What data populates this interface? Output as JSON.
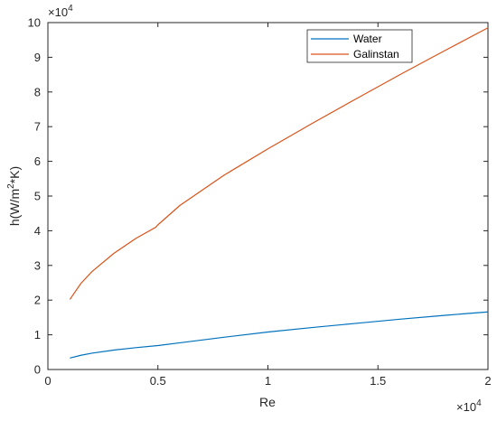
{
  "chart_data": {
    "type": "line",
    "title": "",
    "xlabel": "Re",
    "ylabel": "h(W/m",
    "ylabel_sup": "2",
    "ylabel_tail": "*K)",
    "xlim": [
      0,
      20000
    ],
    "ylim": [
      0,
      100000
    ],
    "x_ticks": [
      0,
      5000,
      10000,
      15000,
      20000
    ],
    "x_tick_labels": [
      "0",
      "0.5",
      "1",
      "1.5",
      "2"
    ],
    "y_ticks": [
      0,
      10000,
      20000,
      30000,
      40000,
      50000,
      60000,
      70000,
      80000,
      90000,
      100000
    ],
    "y_tick_labels": [
      "0",
      "1",
      "2",
      "3",
      "4",
      "5",
      "6",
      "7",
      "8",
      "9",
      "10"
    ],
    "x_multiplier": {
      "base": "×10",
      "exp": "4"
    },
    "y_multiplier": {
      "base": "×10",
      "exp": "4"
    },
    "grid": false,
    "legend_position": "top-right",
    "series": [
      {
        "name": "Water",
        "color": "#0072BD",
        "x": [
          1000,
          1500,
          2000,
          3000,
          4000,
          5000,
          6000,
          8000,
          10000,
          12000,
          14000,
          16000,
          18000,
          20000
        ],
        "y": [
          3300,
          4100,
          4700,
          5600,
          6300,
          6900,
          7700,
          9300,
          10800,
          12100,
          13300,
          14500,
          15600,
          16600
        ]
      },
      {
        "name": "Galinstan",
        "color": "#D95319",
        "x": [
          1000,
          1500,
          2000,
          3000,
          4000,
          4900,
          5000,
          6000,
          8000,
          10000,
          12000,
          14000,
          16000,
          18000,
          20000
        ],
        "y": [
          20200,
          24800,
          28200,
          33500,
          37800,
          41000,
          41700,
          47300,
          56000,
          63600,
          70900,
          78000,
          85000,
          91800,
          98500
        ]
      }
    ]
  }
}
